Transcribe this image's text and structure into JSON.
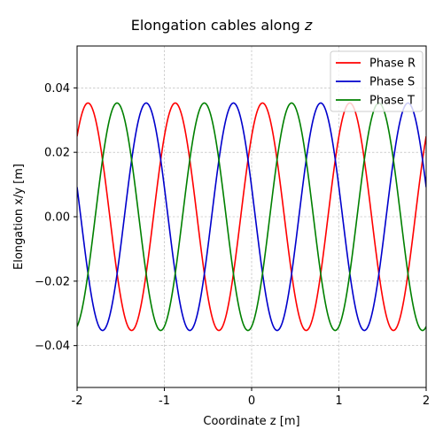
{
  "chart_data": {
    "type": "line",
    "title": "Elongation cables along",
    "title_var": "z",
    "xlabel": "Coordinate z [m]",
    "ylabel": "Elongation x/y [m]",
    "xlim": [
      -2,
      2
    ],
    "ylim": [
      -0.053,
      0.053
    ],
    "xticks": [
      -2,
      -1,
      0,
      1,
      2
    ],
    "xtick_labels": [
      "-2",
      "-1",
      "0",
      "1",
      "2"
    ],
    "yticks": [
      -0.04,
      -0.02,
      0.0,
      0.02,
      0.04
    ],
    "ytick_labels": [
      "−0.04",
      "−0.02",
      "0.00",
      "0.02",
      "0.04"
    ],
    "grid": true,
    "legend_position": "top-right",
    "series": [
      {
        "name": "Phase R",
        "color": "#ff0000",
        "amplitude": 0.0353,
        "wavelength": 1.0,
        "peak_x": 0.125
      },
      {
        "name": "Phase S",
        "color": "#0000cc",
        "amplitude": 0.0353,
        "wavelength": 1.0,
        "peak_x": -0.208
      },
      {
        "name": "Phase T",
        "color": "#008000",
        "amplitude": 0.0353,
        "wavelength": 1.0,
        "peak_x": 0.458
      }
    ]
  }
}
